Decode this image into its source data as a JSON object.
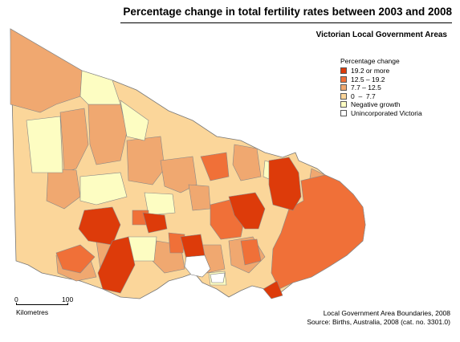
{
  "title": "Percentage change in total fertility rates between 2003 and 2008",
  "subtitle": "Victorian Local Government Areas",
  "legend": {
    "title": "Percentage change",
    "items": [
      {
        "label": "19.2 or more",
        "color": "#dd3b0a"
      },
      {
        "label": "12.5 – 19.2",
        "color": "#f07038"
      },
      {
        "label": "7.7 – 12.5",
        "color": "#f0a870"
      },
      {
        "label": "0  –  7.7",
        "color": "#fbd69a"
      },
      {
        "label": "Negative growth",
        "color": "#fdfdc2"
      },
      {
        "label": "Unincorporated Victoria",
        "color": "#ffffff"
      }
    ]
  },
  "scale": {
    "zero": "0",
    "max": "100",
    "unit": "Kilometres"
  },
  "sources": {
    "line1": "Local Government Area Boundaries, 2008",
    "line2": "Source: Births, Australia, 2008 (cat. no. 3301.0)"
  }
}
